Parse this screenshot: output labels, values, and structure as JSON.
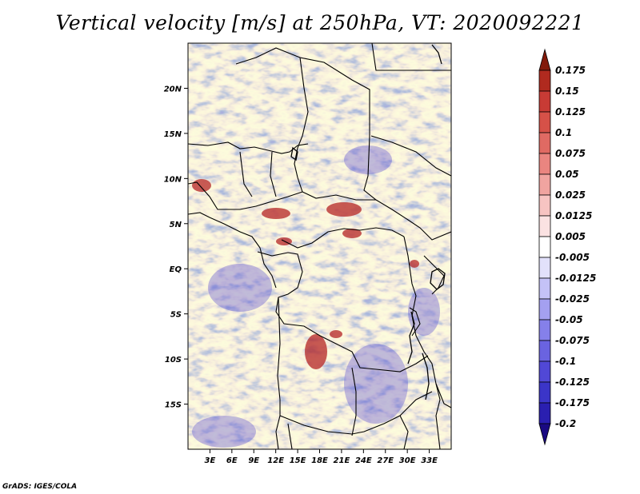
{
  "title": "Vertical velocity [m/s] at 250hPa, VT: 2020092221",
  "footer": "GrADS: IGES/COLA",
  "map": {
    "lon_range": [
      0,
      36
    ],
    "lat_range": [
      -20,
      25
    ],
    "lat_ticks": [
      {
        "value": 20,
        "label": "20N"
      },
      {
        "value": 15,
        "label": "15N"
      },
      {
        "value": 10,
        "label": "10N"
      },
      {
        "value": 5,
        "label": "5N"
      },
      {
        "value": 0,
        "label": "EQ"
      },
      {
        "value": -5,
        "label": "5S"
      },
      {
        "value": -10,
        "label": "10S"
      },
      {
        "value": -15,
        "label": "15S"
      }
    ],
    "lon_ticks": [
      {
        "value": 3,
        "label": "3E"
      },
      {
        "value": 6,
        "label": "6E"
      },
      {
        "value": 9,
        "label": "9E"
      },
      {
        "value": 12,
        "label": "12E"
      },
      {
        "value": 15,
        "label": "15E"
      },
      {
        "value": 18,
        "label": "18E"
      },
      {
        "value": 21,
        "label": "21E"
      },
      {
        "value": 24,
        "label": "24E"
      },
      {
        "value": 27,
        "label": "27E"
      },
      {
        "value": 30,
        "label": "30E"
      },
      {
        "value": 33,
        "label": "33E"
      }
    ]
  },
  "colorbar": {
    "colors": [
      "#1a0a82",
      "#2a1fb0",
      "#3b35c8",
      "#5148d6",
      "#6a63e0",
      "#8580ea",
      "#a4a0f0",
      "#c4c2f7",
      "#e2e1fb",
      "#ffffff",
      "#fbe2e2",
      "#f7c4c2",
      "#f0a4a0",
      "#ea8580",
      "#e06a63",
      "#d65148",
      "#c83b35",
      "#b02a1f",
      "#821a0a"
    ],
    "levels": [
      "-0.2",
      "-0.175",
      "-0.125",
      "-0.1",
      "-0.075",
      "-0.05",
      "-0.025",
      "-0.0125",
      "-0.005",
      "0.005",
      "0.0125",
      "0.025",
      "0.05",
      "0.075",
      "0.1",
      "0.125",
      "0.15",
      "0.175"
    ]
  }
}
